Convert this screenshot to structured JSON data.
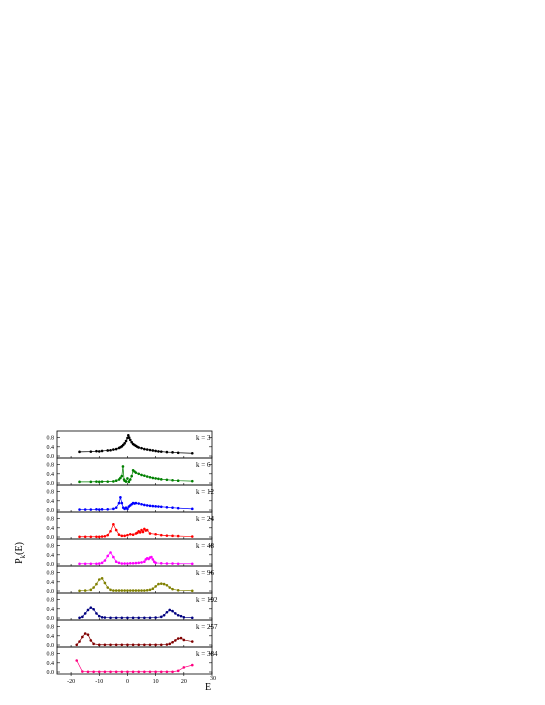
{
  "chart_data": {
    "type": "line",
    "ylabel": "P",
    "ylabel_sub": "k",
    "ylabel_suffix": "(E)",
    "xlabel": "E",
    "xlim": [
      -25,
      30
    ],
    "x_ticks": [
      -20,
      -10,
      0,
      10,
      20,
      30
    ],
    "y_ticks": [
      0.0,
      0.4,
      0.8
    ],
    "y_tick_labels": [
      "0.0",
      "0.4",
      "0.8"
    ],
    "ylim": [
      0,
      1.0
    ],
    "panels": [
      {
        "label": "k = 3",
        "color": "#000000",
        "x": [
          -17,
          -13,
          -11,
          -10,
          -9,
          -7,
          -6,
          -5,
          -4,
          -3,
          -2.5,
          -2,
          -1.5,
          -1,
          -0.5,
          0,
          0.3,
          0.6,
          1,
          1.5,
          2,
          2.5,
          3,
          3.5,
          4,
          5,
          6,
          7,
          8,
          9,
          10,
          11,
          12,
          14,
          16,
          18,
          23
        ],
        "y": [
          0.18,
          0.19,
          0.21,
          0.2,
          0.22,
          0.24,
          0.25,
          0.28,
          0.3,
          0.35,
          0.38,
          0.42,
          0.48,
          0.55,
          0.65,
          0.78,
          0.9,
          0.8,
          0.7,
          0.6,
          0.52,
          0.48,
          0.44,
          0.4,
          0.37,
          0.34,
          0.3,
          0.28,
          0.26,
          0.24,
          0.22,
          0.2,
          0.19,
          0.17,
          0.16,
          0.14,
          0.12
        ]
      },
      {
        "label": "k = 6",
        "color": "#008000",
        "x": [
          -17,
          -13,
          -11,
          -10,
          -9,
          -7,
          -5,
          -4,
          -3,
          -2.5,
          -2,
          -1.6,
          -1.2,
          -1,
          -0.5,
          0,
          0.5,
          1,
          1.5,
          2,
          2.5,
          3,
          4,
          5,
          6,
          7,
          8,
          9,
          10,
          11,
          12,
          14,
          16,
          18,
          23
        ],
        "y": [
          0.05,
          0.05,
          0.06,
          0.05,
          0.06,
          0.06,
          0.07,
          0.1,
          0.15,
          0.22,
          0.3,
          0.72,
          0.15,
          0.1,
          0.06,
          0.2,
          0.05,
          0.15,
          0.3,
          0.55,
          0.5,
          0.45,
          0.4,
          0.35,
          0.32,
          0.28,
          0.25,
          0.22,
          0.2,
          0.18,
          0.16,
          0.14,
          0.12,
          0.1,
          0.08
        ]
      },
      {
        "label": "k = 12",
        "color": "#0000ff",
        "x": [
          -17,
          -15,
          -13,
          -11,
          -10,
          -9,
          -7,
          -5,
          -4,
          -3,
          -2.5,
          -2,
          -1.5,
          -1,
          -0.5,
          0,
          0.5,
          1,
          1.5,
          2,
          2.5,
          3,
          4,
          5,
          6,
          7,
          8,
          9,
          10,
          11,
          12,
          14,
          16,
          18,
          23
        ],
        "y": [
          0.02,
          0.02,
          0.02,
          0.03,
          0.02,
          0.03,
          0.03,
          0.05,
          0.1,
          0.3,
          0.55,
          0.3,
          0.1,
          0.05,
          0.1,
          0.05,
          0.15,
          0.2,
          0.25,
          0.3,
          0.28,
          0.3,
          0.28,
          0.25,
          0.22,
          0.2,
          0.18,
          0.17,
          0.16,
          0.15,
          0.14,
          0.12,
          0.1,
          0.08,
          0.05
        ]
      },
      {
        "label": "k = 24",
        "color": "#ff0000",
        "x": [
          -17,
          -15,
          -13,
          -11,
          -10,
          -9,
          -8,
          -7,
          -6,
          -5,
          -4,
          -3,
          -2,
          -1,
          0,
          1,
          2,
          3,
          3.5,
          4,
          4.5,
          5,
          5.5,
          6,
          6.5,
          7,
          8,
          10,
          12,
          14,
          16,
          18,
          23
        ],
        "y": [
          0.01,
          0.01,
          0.01,
          0.01,
          0.01,
          0.02,
          0.03,
          0.08,
          0.25,
          0.55,
          0.3,
          0.1,
          0.05,
          0.05,
          0.08,
          0.12,
          0.1,
          0.15,
          0.18,
          0.25,
          0.2,
          0.3,
          0.22,
          0.35,
          0.28,
          0.3,
          0.15,
          0.12,
          0.08,
          0.06,
          0.05,
          0.04,
          0.02
        ]
      },
      {
        "label": "k = 48",
        "color": "#ff00ff",
        "x": [
          -17,
          -15,
          -13,
          -11,
          -10,
          -9,
          -8,
          -7,
          -6,
          -5,
          -4,
          -3,
          -2,
          -1,
          0,
          1,
          2,
          3,
          4,
          5,
          6,
          6.5,
          7,
          7.5,
          8,
          8.5,
          9,
          9.5,
          10,
          12,
          14,
          16,
          18,
          23
        ],
        "y": [
          0.01,
          0.01,
          0.01,
          0.01,
          0.02,
          0.05,
          0.15,
          0.35,
          0.5,
          0.3,
          0.1,
          0.05,
          0.02,
          0.02,
          0.02,
          0.03,
          0.03,
          0.04,
          0.05,
          0.07,
          0.1,
          0.2,
          0.25,
          0.22,
          0.28,
          0.3,
          0.2,
          0.1,
          0.05,
          0.03,
          0.02,
          0.02,
          0.01,
          0.01
        ]
      },
      {
        "label": "k = 96",
        "color": "#808000",
        "x": [
          -17,
          -15,
          -13,
          -12,
          -11,
          -10,
          -9,
          -8,
          -7,
          -6,
          -5,
          -4,
          -3,
          -2,
          -1,
          0,
          1,
          2,
          3,
          4,
          5,
          6,
          7,
          8,
          9,
          10,
          11,
          12,
          13,
          14,
          15,
          16,
          18,
          23
        ],
        "y": [
          0.01,
          0.02,
          0.05,
          0.15,
          0.3,
          0.5,
          0.55,
          0.35,
          0.15,
          0.05,
          0.02,
          0.02,
          0.02,
          0.02,
          0.02,
          0.02,
          0.02,
          0.02,
          0.02,
          0.02,
          0.02,
          0.02,
          0.03,
          0.05,
          0.1,
          0.2,
          0.3,
          0.32,
          0.3,
          0.25,
          0.15,
          0.08,
          0.03,
          0.01
        ]
      },
      {
        "label": "k = 192",
        "color": "#000080",
        "x": [
          -17,
          -16,
          -15,
          -14,
          -13,
          -12,
          -11,
          -10,
          -9,
          -8,
          -6,
          -4,
          -2,
          0,
          2,
          4,
          6,
          8,
          10,
          12,
          13,
          14,
          15,
          16,
          17,
          18,
          19,
          20,
          23
        ],
        "y": [
          0.01,
          0.05,
          0.2,
          0.35,
          0.45,
          0.38,
          0.2,
          0.08,
          0.03,
          0.02,
          0.01,
          0.01,
          0.01,
          0.01,
          0.01,
          0.01,
          0.01,
          0.01,
          0.02,
          0.05,
          0.12,
          0.25,
          0.35,
          0.3,
          0.2,
          0.12,
          0.08,
          0.03,
          0.01
        ]
      },
      {
        "label": "k = 257",
        "color": "#800000",
        "x": [
          -18,
          -17,
          -16,
          -15,
          -14,
          -13,
          -12,
          -10,
          -8,
          -6,
          -4,
          -2,
          0,
          2,
          4,
          6,
          8,
          10,
          12,
          14,
          15,
          16,
          17,
          18,
          19,
          20,
          23
        ],
        "y": [
          0.01,
          0.15,
          0.35,
          0.5,
          0.45,
          0.2,
          0.05,
          0.01,
          0.01,
          0.01,
          0.01,
          0.01,
          0.01,
          0.01,
          0.01,
          0.01,
          0.01,
          0.01,
          0.01,
          0.02,
          0.05,
          0.12,
          0.2,
          0.28,
          0.3,
          0.22,
          0.15
        ]
      },
      {
        "label": "k = 384",
        "color": "#ff0080",
        "x": [
          -18,
          -16,
          -14,
          -12,
          -10,
          -8,
          -6,
          -4,
          -2,
          0,
          2,
          4,
          6,
          8,
          10,
          12,
          14,
          16,
          18,
          20,
          23
        ],
        "y": [
          0.5,
          0.02,
          0.01,
          0.01,
          0.01,
          0.01,
          0.01,
          0.01,
          0.01,
          0.01,
          0.01,
          0.01,
          0.01,
          0.01,
          0.01,
          0.01,
          0.01,
          0.01,
          0.05,
          0.2,
          0.3
        ]
      }
    ]
  }
}
